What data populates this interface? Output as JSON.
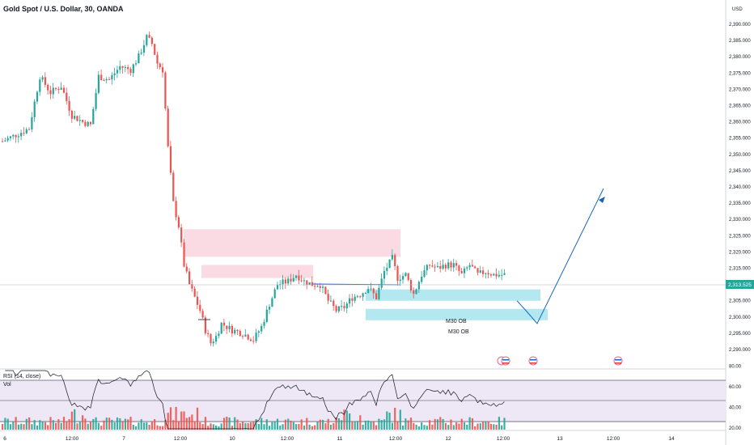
{
  "header": {
    "title": "Gold Spot / U.S. Dollar, 30, OANDA"
  },
  "price_axis": {
    "currency": "USD",
    "ticks": [
      "2,390.000",
      "2,385.000",
      "2,380.000",
      "2,375.000",
      "2,370.000",
      "2,365.000",
      "2,360.000",
      "2,355.000",
      "2,350.000",
      "2,345.000",
      "2,340.000",
      "2,335.000",
      "2,330.000",
      "2,325.000",
      "2,320.000",
      "2,315.000",
      "2,305.000",
      "2,300.000",
      "2,295.000",
      "2,290.000"
    ],
    "current_price": "2,313.525"
  },
  "time_axis": {
    "labels": [
      "6",
      "12:00",
      "7",
      "12:00",
      "10",
      "12:00",
      "11",
      "12:00",
      "12",
      "12:00",
      "13",
      "12:00",
      "14"
    ]
  },
  "annotations": {
    "ob_upper": "M30 OB",
    "ob_lower": "M30 OB"
  },
  "rsi_panel": {
    "title": "RSI (14, close)",
    "vol_label": "Vol",
    "ticks": [
      "80.00",
      "60.00",
      "40.00",
      "20.00"
    ]
  },
  "colors": {
    "up": "#26a69a",
    "down": "#ef5350",
    "zone_pink": "#f9d5df",
    "zone_cyan": "#a6e4ef",
    "drawing": "#1565c0",
    "current_price_bg": "#26a69a",
    "rsi_bg": "#ede7f6"
  },
  "chart_data": {
    "type": "candlestick",
    "symbol": "Gold Spot / U.S. Dollar",
    "interval": "30",
    "source": "OANDA",
    "x_labels": [
      "6",
      "12:00",
      "7",
      "12:00",
      "10",
      "12:00",
      "11",
      "12:00",
      "12",
      "12:00",
      "13",
      "12:00",
      "14"
    ],
    "y_range": [
      2287,
      2393
    ],
    "anchors": [
      [
        0,
        2354
      ],
      [
        5,
        2356
      ],
      [
        10,
        2358
      ],
      [
        14,
        2374
      ],
      [
        18,
        2369
      ],
      [
        22,
        2371
      ],
      [
        26,
        2362
      ],
      [
        30,
        2360
      ],
      [
        33,
        2359
      ],
      [
        36,
        2374
      ],
      [
        40,
        2373
      ],
      [
        44,
        2377
      ],
      [
        48,
        2376
      ],
      [
        51,
        2380
      ],
      [
        54,
        2386
      ],
      [
        56,
        2384
      ],
      [
        58,
        2378
      ],
      [
        60,
        2376
      ],
      [
        62,
        2352
      ],
      [
        64,
        2335
      ],
      [
        66,
        2328
      ],
      [
        68,
        2316
      ],
      [
        70,
        2310
      ],
      [
        72,
        2306
      ],
      [
        74,
        2302
      ],
      [
        76,
        2296
      ],
      [
        78,
        2292
      ],
      [
        80,
        2294
      ],
      [
        82,
        2298
      ],
      [
        86,
        2296
      ],
      [
        90,
        2295
      ],
      [
        94,
        2293
      ],
      [
        97,
        2297
      ],
      [
        100,
        2304
      ],
      [
        103,
        2310
      ],
      [
        107,
        2311
      ],
      [
        110,
        2313
      ],
      [
        113,
        2311
      ],
      [
        116,
        2310
      ],
      [
        119,
        2310
      ],
      [
        122,
        2305
      ],
      [
        125,
        2302
      ],
      [
        128,
        2303
      ],
      [
        131,
        2306
      ],
      [
        134,
        2307
      ],
      [
        137,
        2309
      ],
      [
        140,
        2306
      ],
      [
        143,
        2314
      ],
      [
        146,
        2318
      ],
      [
        148,
        2312
      ],
      [
        151,
        2313
      ],
      [
        154,
        2307
      ],
      [
        157,
        2313
      ],
      [
        160,
        2316
      ],
      [
        163,
        2315
      ],
      [
        166,
        2316
      ],
      [
        169,
        2316
      ],
      [
        172,
        2313
      ],
      [
        175,
        2316
      ],
      [
        178,
        2313
      ],
      [
        181,
        2314
      ],
      [
        184,
        2313
      ],
      [
        188,
        2313
      ]
    ],
    "current_price": 2313.525,
    "zones": [
      {
        "label": "",
        "kind": "supply",
        "from": 2318.5,
        "to": 2327.0
      },
      {
        "label": "",
        "kind": "supply",
        "from": 2312.0,
        "to": 2316.0
      },
      {
        "label": "M30 OB",
        "kind": "order_block",
        "from": 2301.5,
        "to": 2305.0
      },
      {
        "label": "M30 OB",
        "kind": "order_block",
        "from": 2298.5,
        "to": 2302.0
      }
    ],
    "projection": [
      2305,
      2302,
      2299,
      2339
    ],
    "rsi": {
      "name": "RSI (14, close)",
      "range": [
        15,
        85
      ],
      "levels": [
        70,
        50,
        30
      ]
    },
    "legend": "none",
    "grid": false
  }
}
